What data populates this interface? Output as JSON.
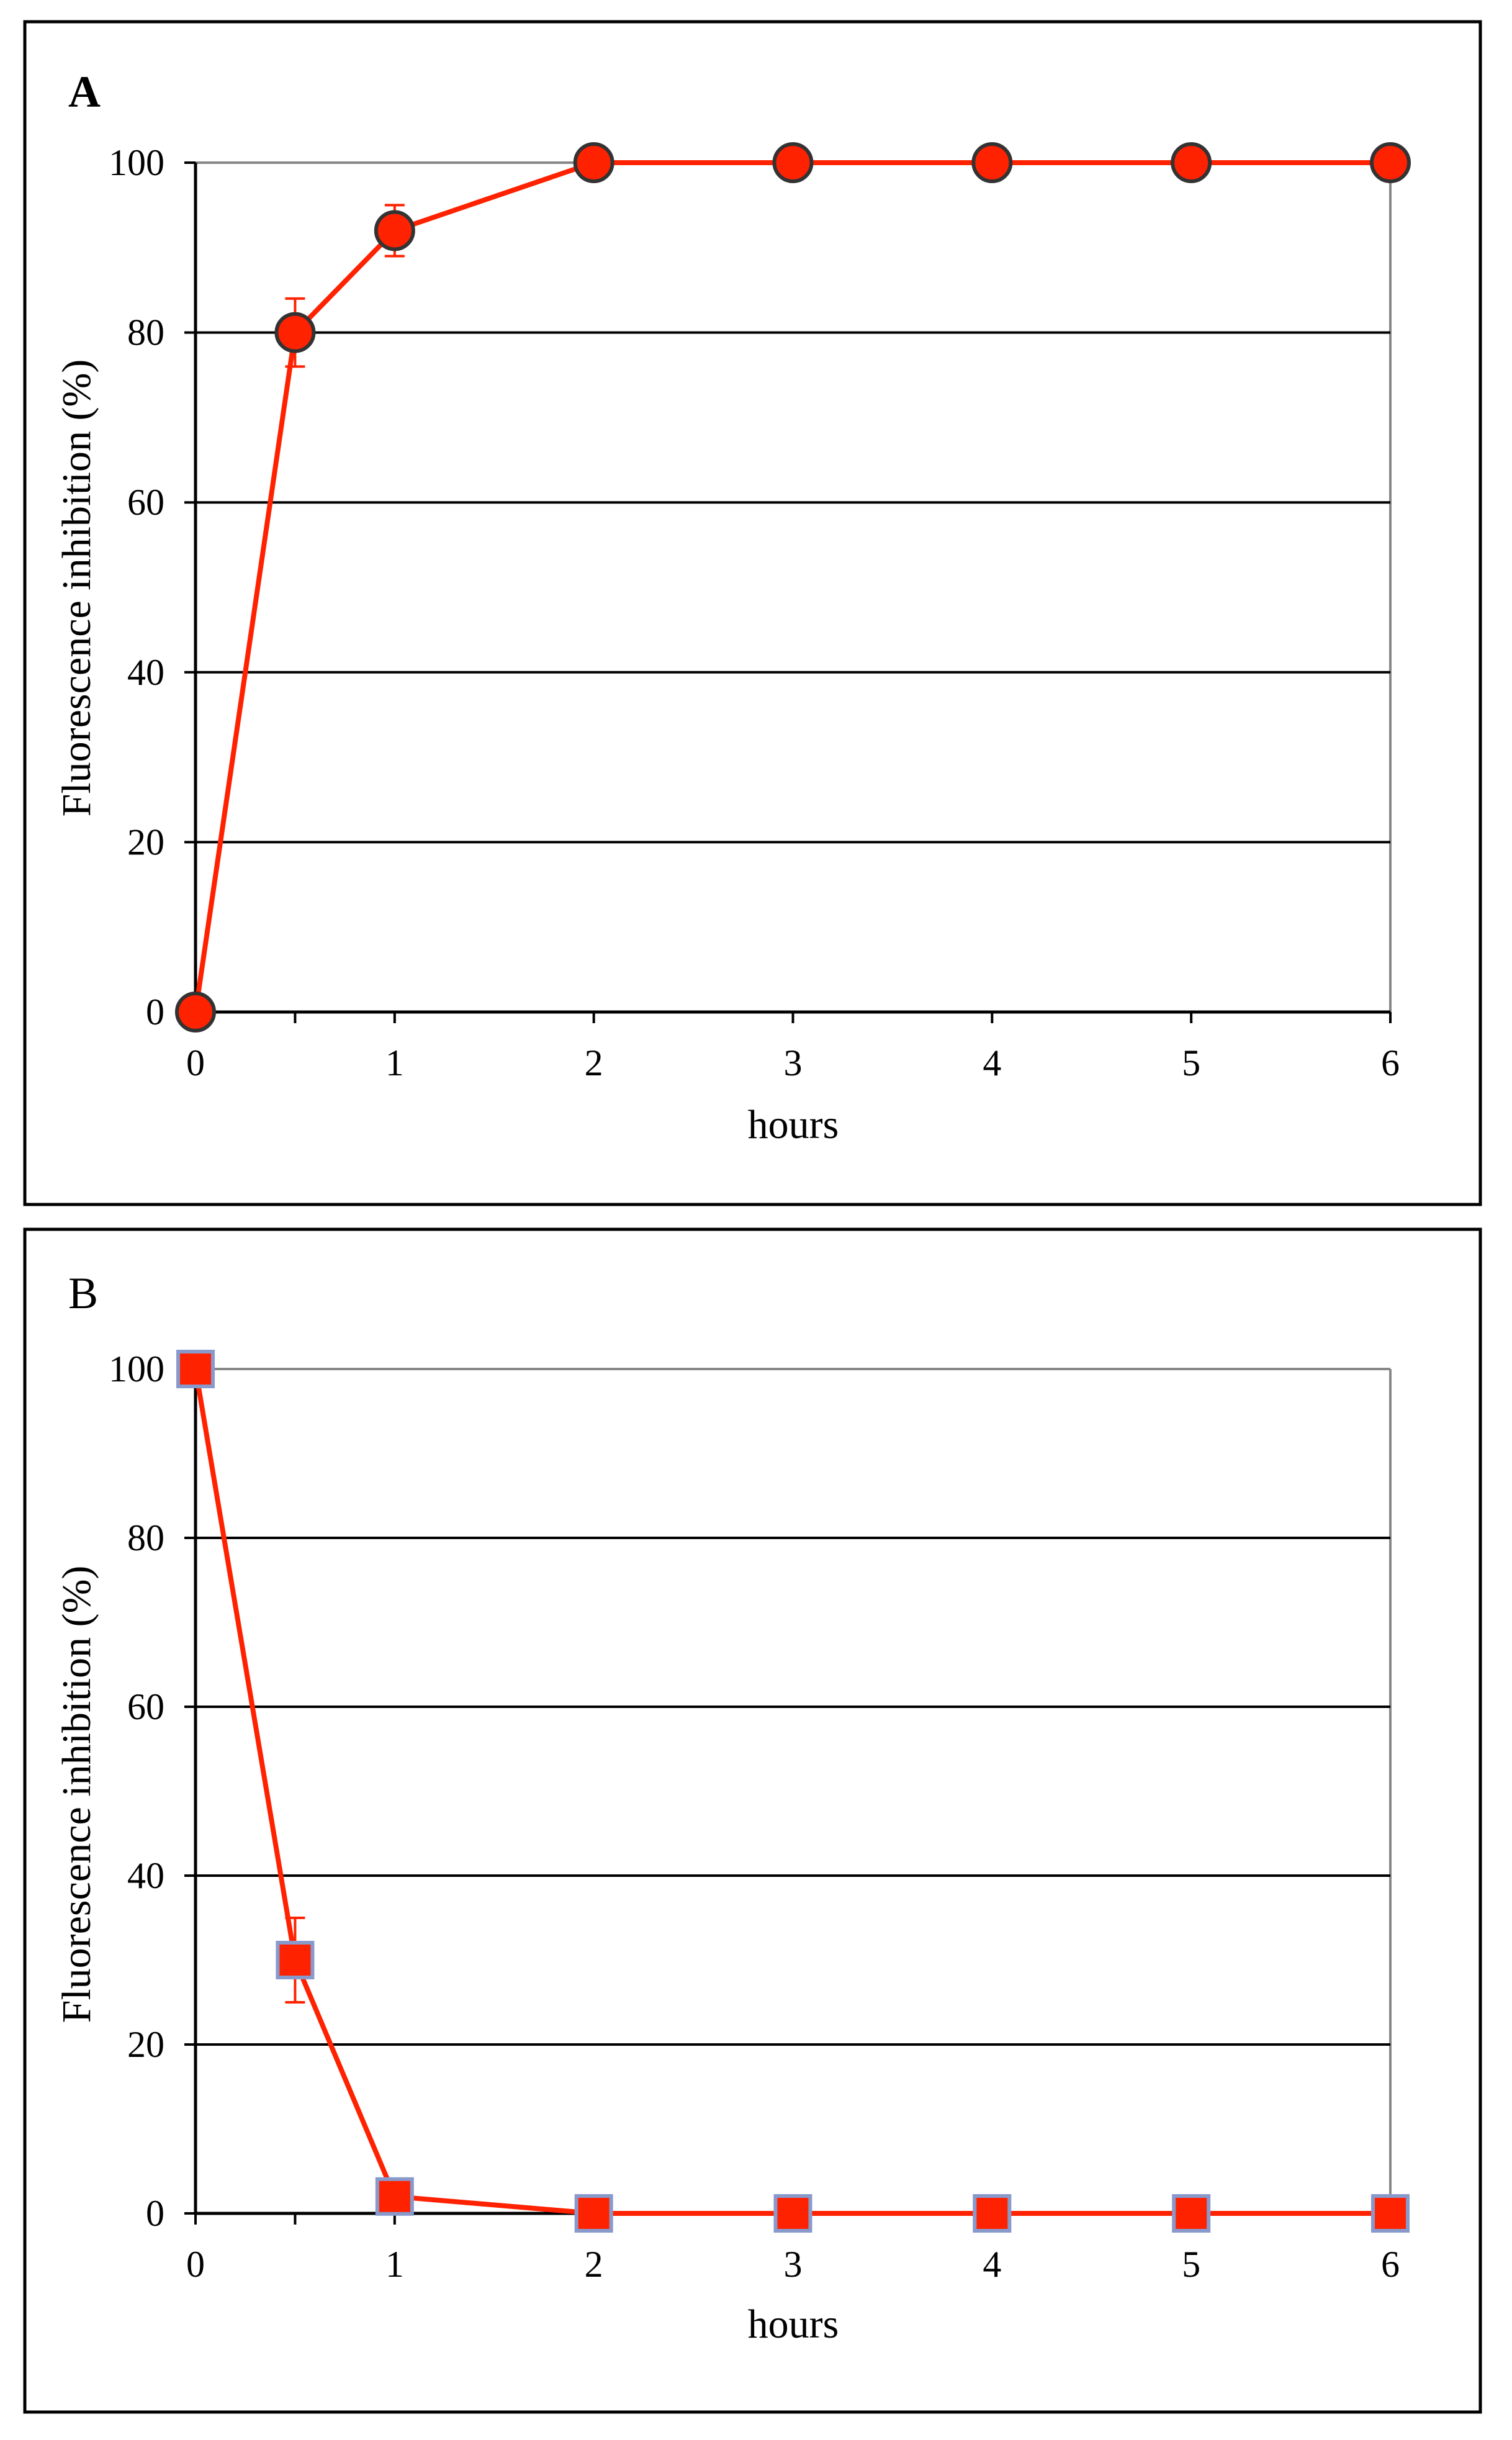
{
  "colors": {
    "series": "#ff2200",
    "marker_fill": "#ff2200",
    "circle_outline": "#333333",
    "square_outline": "#8899cc",
    "gridline": "#000000",
    "plot_border": "#888888",
    "panel_border": "#000000"
  },
  "chart_data": [
    {
      "type": "line",
      "panel_label": "A",
      "xlabel": "hours",
      "ylabel": "Fluorescence inhibition (%)",
      "xlim": [
        0,
        6
      ],
      "ylim": [
        0,
        100
      ],
      "x_ticks": [
        0,
        0.5,
        1,
        2,
        3,
        4,
        5,
        6
      ],
      "x_tick_labels": [
        "0",
        "",
        "1",
        "2",
        "3",
        "4",
        "5",
        "6"
      ],
      "y_ticks": [
        0,
        20,
        40,
        60,
        80,
        100
      ],
      "y_tick_labels": [
        "0",
        "20",
        "40",
        "60",
        "80",
        "100"
      ],
      "grid": "horizontal",
      "marker": "circle",
      "series": [
        {
          "x": [
            0,
            0.5,
            1,
            2,
            3,
            4,
            5,
            6
          ],
          "y": [
            0,
            80,
            92,
            100,
            100,
            100,
            100,
            100
          ],
          "error": [
            0,
            4,
            3,
            0,
            0,
            0,
            0,
            0
          ]
        }
      ]
    },
    {
      "type": "line",
      "panel_label": "B",
      "xlabel": "hours",
      "ylabel": "Fluorescence inhibition (%)",
      "xlim": [
        0,
        6
      ],
      "ylim": [
        0,
        100
      ],
      "x_ticks": [
        0,
        0.5,
        1,
        2,
        3,
        4,
        5,
        6
      ],
      "x_tick_labels": [
        "0",
        "",
        "1",
        "2",
        "3",
        "4",
        "5",
        "6"
      ],
      "y_ticks": [
        0,
        20,
        40,
        60,
        80,
        100
      ],
      "y_tick_labels": [
        "0",
        "20",
        "40",
        "60",
        "80",
        "100"
      ],
      "grid": "horizontal",
      "marker": "square",
      "series": [
        {
          "x": [
            0,
            0.5,
            1,
            2,
            3,
            4,
            5,
            6
          ],
          "y": [
            100,
            30,
            2,
            0,
            0,
            0,
            0,
            0
          ],
          "error": [
            0,
            5,
            0,
            0,
            0,
            0,
            0,
            0
          ]
        }
      ]
    }
  ]
}
